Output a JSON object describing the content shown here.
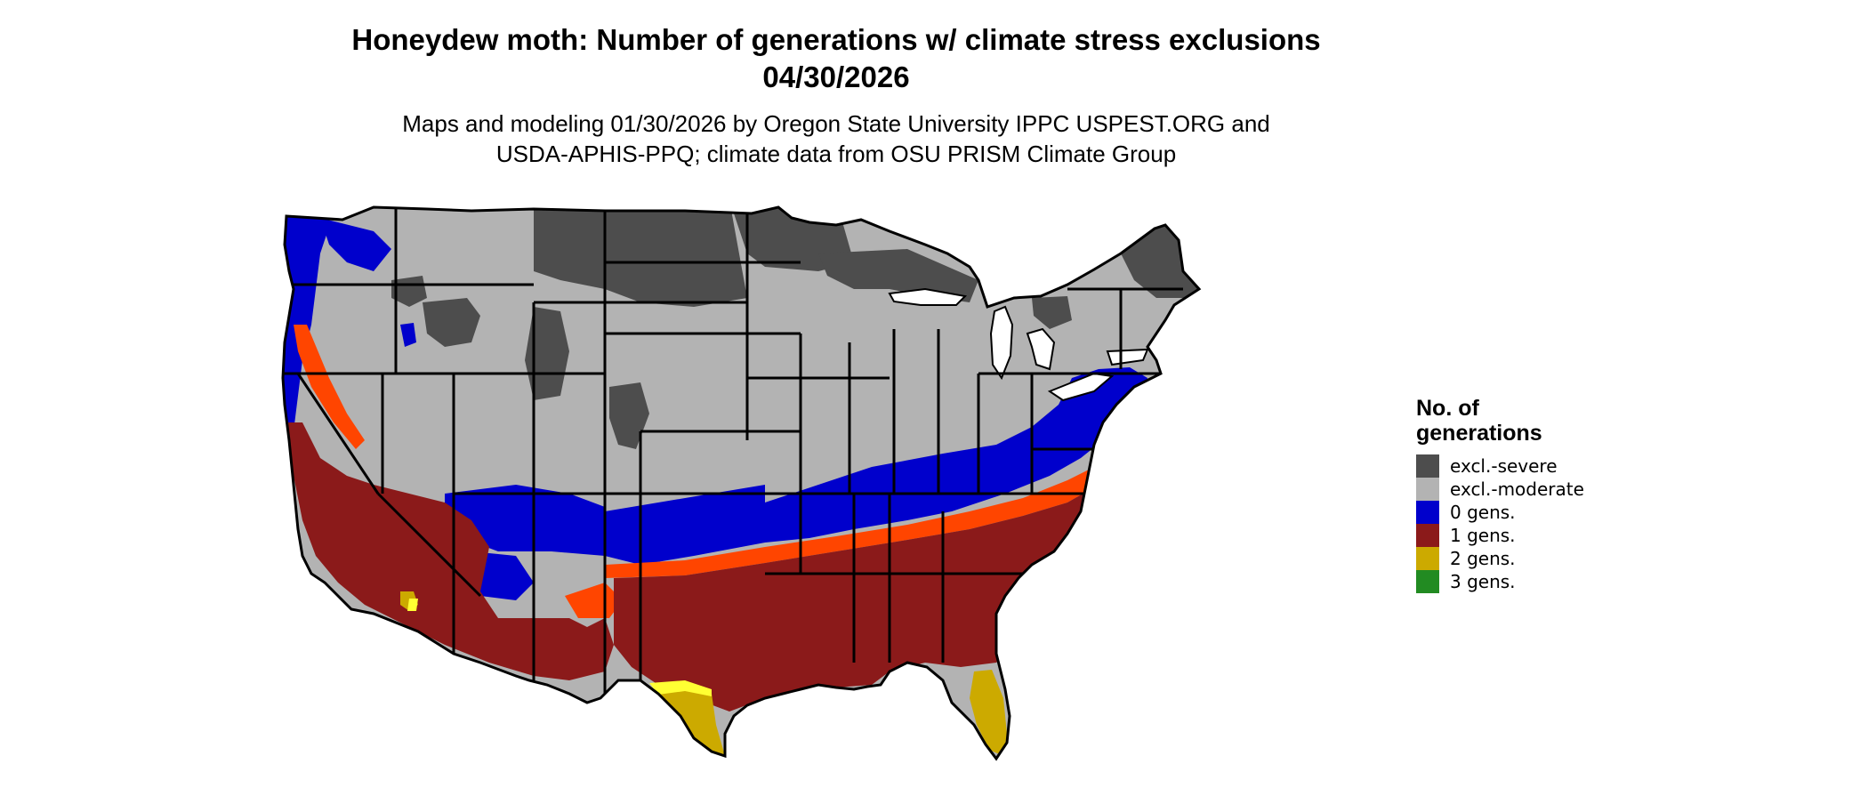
{
  "title": {
    "line1": "Honeydew moth: Number of generations w/ climate stress exclusions",
    "line2": "04/30/2026"
  },
  "subtitle": {
    "line1": "Maps and modeling 01/30/2026 by Oregon State University IPPC USPEST.ORG and",
    "line2": "USDA-APHIS-PPQ; climate data from OSU PRISM Climate Group"
  },
  "legend": {
    "title_line1": "No. of",
    "title_line2": "generations",
    "items": [
      {
        "label": "excl.-severe",
        "color": "#4d4d4d"
      },
      {
        "label": "excl.-moderate",
        "color": "#b3b3b3"
      },
      {
        "label": "0 gens.",
        "color": "#0000cc"
      },
      {
        "label": "1 gens.",
        "color": "#8b1a1a"
      },
      {
        "label": "2 gens.",
        "color": "#ccaa00"
      },
      {
        "label": "3 gens.",
        "color": "#228b22"
      }
    ]
  },
  "map": {
    "region": "Contiguous United States",
    "colors": {
      "excl_severe": "#4d4d4d",
      "excl_moderate": "#b3b3b3",
      "gens_0": "#0000cc",
      "gens_1": "#8b1a1a",
      "gens_1_edge": "#ff4500",
      "gens_2": "#ccaa00",
      "gens_2_edge": "#ffff33",
      "gens_3": "#228b22",
      "borders": "#000000"
    }
  }
}
